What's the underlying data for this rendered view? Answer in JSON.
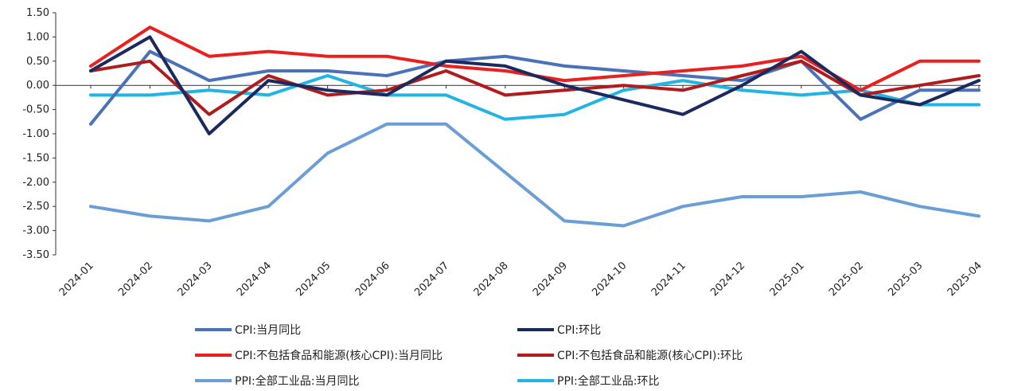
{
  "chart_data": {
    "type": "line",
    "title": "",
    "xlabel": "",
    "ylabel": "",
    "ylim": [
      -3.5,
      1.5
    ],
    "y_ticks": [
      "1.50",
      "1.00",
      "0.50",
      "0.00",
      "-0.50",
      "-1.00",
      "-1.50",
      "-2.00",
      "-2.50",
      "-3.00",
      "-3.50"
    ],
    "y_tick_values": [
      1.5,
      1.0,
      0.5,
      0.0,
      -0.5,
      -1.0,
      -1.5,
      -2.0,
      -2.5,
      -3.0,
      -3.5
    ],
    "grid": false,
    "legend_position": "bottom",
    "categories": [
      "2024-01",
      "2024-02",
      "2024-03",
      "2024-04",
      "2024-05",
      "2024-06",
      "2024-07",
      "2024-08",
      "2024-09",
      "2024-10",
      "2024-11",
      "2024-12",
      "2025-01",
      "2025-02",
      "2025-03",
      "2025-04"
    ],
    "series": [
      {
        "name": "CPI:当月同比",
        "color": "#4a72b8",
        "values": [
          -0.8,
          0.7,
          0.1,
          0.3,
          0.3,
          0.2,
          0.5,
          0.6,
          0.4,
          0.3,
          0.2,
          0.1,
          0.5,
          -0.7,
          -0.1,
          -0.1
        ]
      },
      {
        "name": "CPI:环比",
        "color": "#1a2a5e",
        "values": [
          0.3,
          1.0,
          -1.0,
          0.1,
          -0.1,
          -0.2,
          0.5,
          0.4,
          0.0,
          -0.3,
          -0.6,
          0.0,
          0.7,
          -0.2,
          -0.4,
          0.1
        ]
      },
      {
        "name": "CPI:不包括食品和能源(核心CPI):当月同比",
        "color": "#e8201f",
        "values": [
          0.4,
          1.2,
          0.6,
          0.7,
          0.6,
          0.6,
          0.4,
          0.3,
          0.1,
          0.2,
          0.3,
          0.4,
          0.6,
          -0.1,
          0.5,
          0.5
        ]
      },
      {
        "name": "CPI:不包括食品和能源(核心CPI):环比",
        "color": "#b01c1c",
        "values": [
          0.3,
          0.5,
          -0.6,
          0.2,
          -0.2,
          -0.1,
          0.3,
          -0.2,
          -0.1,
          0.0,
          -0.1,
          0.2,
          0.5,
          -0.2,
          0.0,
          0.2
        ]
      },
      {
        "name": "PPI:全部工业品:当月同比",
        "color": "#6a9ed4",
        "values": [
          -2.5,
          -2.7,
          -2.8,
          -2.5,
          -1.4,
          -0.8,
          -0.8,
          -1.8,
          -2.8,
          -2.9,
          -2.5,
          -2.3,
          -2.3,
          -2.2,
          -2.5,
          -2.7
        ]
      },
      {
        "name": "PPI:全部工业品:环比",
        "color": "#22b5e3",
        "values": [
          -0.2,
          -0.2,
          -0.1,
          -0.2,
          0.2,
          -0.2,
          -0.2,
          -0.7,
          -0.6,
          -0.1,
          0.1,
          -0.1,
          -0.2,
          -0.1,
          -0.4,
          -0.4
        ]
      }
    ]
  }
}
